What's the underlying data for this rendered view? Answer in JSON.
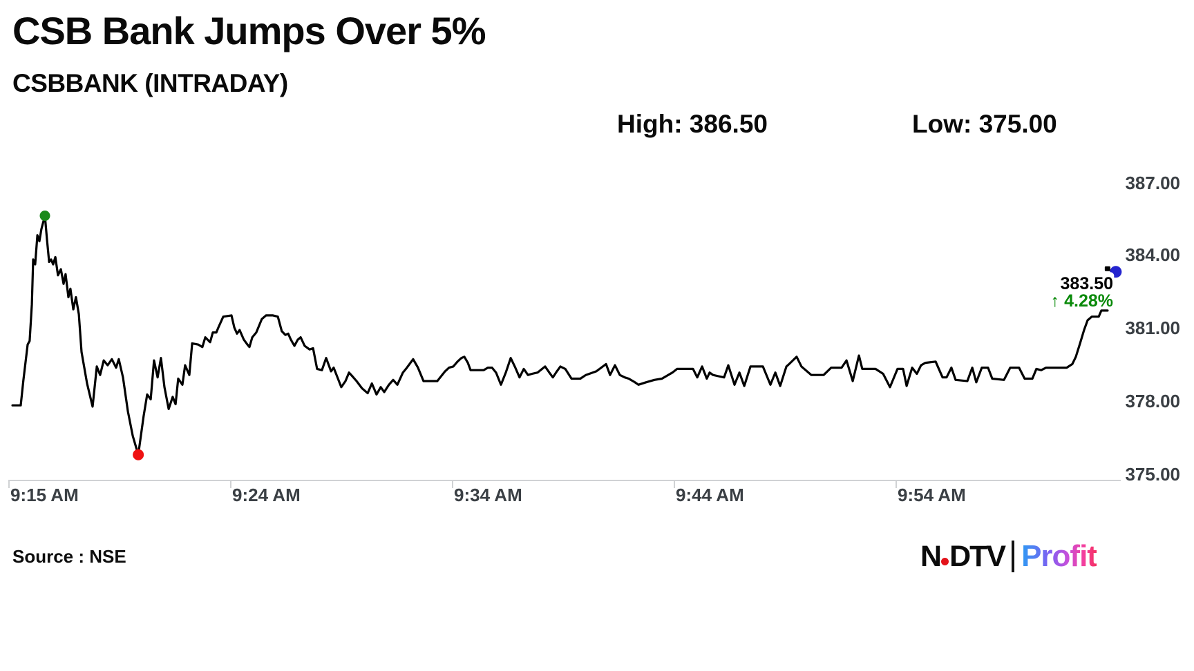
{
  "header": {
    "title": "CSB Bank Jumps Over 5%",
    "subtitle": "CSBBANK (INTRADAY)",
    "high_label": "High: 386.50",
    "low_label": "Low: 375.00"
  },
  "price_tag": {
    "last": "383.50",
    "change": "↑ 4.28%",
    "change_color": "#0a8a0a"
  },
  "footer": {
    "source": "Source : NSE",
    "logo": {
      "ndtv_left": "N",
      "ndtv_right": "DTV",
      "profit": "Profit"
    }
  },
  "chart_data": {
    "type": "line",
    "title": "CSB Bank Jumps Over 5%",
    "symbol": "CSBBANK (INTRADAY)",
    "high": 386.5,
    "low": 375.0,
    "last": 383.5,
    "change_pct": 4.28,
    "ylim": [
      375,
      387
    ],
    "grid": false,
    "legend": false,
    "line_color": "#000000",
    "axis_color": "#d0d2d4",
    "y_axis": {
      "labels": [
        "387.00",
        "384.00",
        "381.00",
        "378.00",
        "375.00"
      ],
      "values": [
        387,
        384,
        381,
        378,
        375
      ]
    },
    "x_axis": {
      "labels": [
        "9:15 AM",
        "9:24 AM",
        "9:34 AM",
        "9:44 AM",
        "9:54 AM"
      ],
      "minutes": [
        0,
        10,
        20,
        30,
        40
      ]
    },
    "markers": {
      "high": {
        "minute": 1.62,
        "value": 385.65,
        "color": "#1a8a1a"
      },
      "low": {
        "minute": 5.83,
        "value": 375.82,
        "color": "#ef1212"
      },
      "last": {
        "minute": 49.84,
        "value": 383.4,
        "color": "#2424cf"
      }
    },
    "series": [
      {
        "name": "CSBBANK",
        "points": [
          [
            0.16,
            377.85
          ],
          [
            0.53,
            377.85
          ],
          [
            0.65,
            378.9
          ],
          [
            0.84,
            380.35
          ],
          [
            0.93,
            380.5
          ],
          [
            1.03,
            382.0
          ],
          [
            1.09,
            383.85
          ],
          [
            1.18,
            383.65
          ],
          [
            1.28,
            384.85
          ],
          [
            1.37,
            384.6
          ],
          [
            1.46,
            385.1
          ],
          [
            1.62,
            385.65
          ],
          [
            1.71,
            384.7
          ],
          [
            1.81,
            383.75
          ],
          [
            1.9,
            383.85
          ],
          [
            1.99,
            383.65
          ],
          [
            2.09,
            383.95
          ],
          [
            2.21,
            383.2
          ],
          [
            2.34,
            383.45
          ],
          [
            2.46,
            382.85
          ],
          [
            2.55,
            383.25
          ],
          [
            2.68,
            382.3
          ],
          [
            2.77,
            382.65
          ],
          [
            2.9,
            381.8
          ],
          [
            3.02,
            382.3
          ],
          [
            3.15,
            381.6
          ],
          [
            3.27,
            380.05
          ],
          [
            3.52,
            378.75
          ],
          [
            3.77,
            377.8
          ],
          [
            3.96,
            379.45
          ],
          [
            4.11,
            379.1
          ],
          [
            4.27,
            379.7
          ],
          [
            4.45,
            379.5
          ],
          [
            4.64,
            379.75
          ],
          [
            4.83,
            379.4
          ],
          [
            4.95,
            379.75
          ],
          [
            5.14,
            379.0
          ],
          [
            5.36,
            377.6
          ],
          [
            5.58,
            376.6
          ],
          [
            5.83,
            375.82
          ],
          [
            6.07,
            377.4
          ],
          [
            6.23,
            378.3
          ],
          [
            6.39,
            378.1
          ],
          [
            6.54,
            379.7
          ],
          [
            6.7,
            379.0
          ],
          [
            6.85,
            379.8
          ],
          [
            7.01,
            378.6
          ],
          [
            7.2,
            377.7
          ],
          [
            7.38,
            378.2
          ],
          [
            7.51,
            377.9
          ],
          [
            7.63,
            378.95
          ],
          [
            7.82,
            378.7
          ],
          [
            7.94,
            379.5
          ],
          [
            8.13,
            379.1
          ],
          [
            8.26,
            380.4
          ],
          [
            8.54,
            380.35
          ],
          [
            8.72,
            380.25
          ],
          [
            8.85,
            380.65
          ],
          [
            9.07,
            380.45
          ],
          [
            9.19,
            380.85
          ],
          [
            9.35,
            380.85
          ],
          [
            9.44,
            381.05
          ],
          [
            9.66,
            381.5
          ],
          [
            10.03,
            381.55
          ],
          [
            10.16,
            381.05
          ],
          [
            10.28,
            380.8
          ],
          [
            10.4,
            380.95
          ],
          [
            10.59,
            380.55
          ],
          [
            10.75,
            380.35
          ],
          [
            10.84,
            380.25
          ],
          [
            10.97,
            380.65
          ],
          [
            11.15,
            380.85
          ],
          [
            11.4,
            381.4
          ],
          [
            11.59,
            381.55
          ],
          [
            11.9,
            381.55
          ],
          [
            12.12,
            381.5
          ],
          [
            12.3,
            380.9
          ],
          [
            12.46,
            380.75
          ],
          [
            12.59,
            380.8
          ],
          [
            12.71,
            380.55
          ],
          [
            12.87,
            380.3
          ],
          [
            13.02,
            380.55
          ],
          [
            13.15,
            380.65
          ],
          [
            13.33,
            380.3
          ],
          [
            13.55,
            380.15
          ],
          [
            13.71,
            380.2
          ],
          [
            13.89,
            379.35
          ],
          [
            14.11,
            379.3
          ],
          [
            14.3,
            379.8
          ],
          [
            14.52,
            379.25
          ],
          [
            14.64,
            379.4
          ],
          [
            14.98,
            378.6
          ],
          [
            15.17,
            378.85
          ],
          [
            15.33,
            379.2
          ],
          [
            15.48,
            379.05
          ],
          [
            15.67,
            378.85
          ],
          [
            15.92,
            378.55
          ],
          [
            16.17,
            378.35
          ],
          [
            16.36,
            378.75
          ],
          [
            16.57,
            378.3
          ],
          [
            16.76,
            378.6
          ],
          [
            16.92,
            378.4
          ],
          [
            17.13,
            378.7
          ],
          [
            17.32,
            378.9
          ],
          [
            17.51,
            378.7
          ],
          [
            17.76,
            379.2
          ],
          [
            17.94,
            379.4
          ],
          [
            18.22,
            379.75
          ],
          [
            18.44,
            379.4
          ],
          [
            18.69,
            378.85
          ],
          [
            19.31,
            378.85
          ],
          [
            19.66,
            379.25
          ],
          [
            19.84,
            379.4
          ],
          [
            20.03,
            379.45
          ],
          [
            20.22,
            379.65
          ],
          [
            20.4,
            379.8
          ],
          [
            20.53,
            379.85
          ],
          [
            20.69,
            379.6
          ],
          [
            20.81,
            379.3
          ],
          [
            21.4,
            379.3
          ],
          [
            21.59,
            379.4
          ],
          [
            21.78,
            379.4
          ],
          [
            21.96,
            379.2
          ],
          [
            22.18,
            378.7
          ],
          [
            22.4,
            379.2
          ],
          [
            22.62,
            379.8
          ],
          [
            22.83,
            379.4
          ],
          [
            23.02,
            379.0
          ],
          [
            23.21,
            379.35
          ],
          [
            23.4,
            379.1
          ],
          [
            23.58,
            379.15
          ],
          [
            23.83,
            379.2
          ],
          [
            24.17,
            379.45
          ],
          [
            24.36,
            379.2
          ],
          [
            24.52,
            379.0
          ],
          [
            24.7,
            379.25
          ],
          [
            24.86,
            379.45
          ],
          [
            25.08,
            379.35
          ],
          [
            25.36,
            378.95
          ],
          [
            25.76,
            378.95
          ],
          [
            26.01,
            379.1
          ],
          [
            26.48,
            379.25
          ],
          [
            26.7,
            379.4
          ],
          [
            26.92,
            379.55
          ],
          [
            27.1,
            379.1
          ],
          [
            27.32,
            379.5
          ],
          [
            27.54,
            379.1
          ],
          [
            27.76,
            379.0
          ],
          [
            27.94,
            378.95
          ],
          [
            28.22,
            378.8
          ],
          [
            28.38,
            378.7
          ],
          [
            28.72,
            378.8
          ],
          [
            29.1,
            378.9
          ],
          [
            29.44,
            378.95
          ],
          [
            29.72,
            379.1
          ],
          [
            29.91,
            379.2
          ],
          [
            30.12,
            379.35
          ],
          [
            30.47,
            379.35
          ],
          [
            30.84,
            379.35
          ],
          [
            31.03,
            379.0
          ],
          [
            31.25,
            379.45
          ],
          [
            31.46,
            378.95
          ],
          [
            31.59,
            379.2
          ],
          [
            31.74,
            379.1
          ],
          [
            31.99,
            379.05
          ],
          [
            32.24,
            379.0
          ],
          [
            32.43,
            379.5
          ],
          [
            32.71,
            378.7
          ],
          [
            32.93,
            379.2
          ],
          [
            33.15,
            378.65
          ],
          [
            33.43,
            379.45
          ],
          [
            33.99,
            379.45
          ],
          [
            34.33,
            378.7
          ],
          [
            34.55,
            379.2
          ],
          [
            34.77,
            378.65
          ],
          [
            35.05,
            379.45
          ],
          [
            35.17,
            379.55
          ],
          [
            35.51,
            379.85
          ],
          [
            35.73,
            379.45
          ],
          [
            36.17,
            379.1
          ],
          [
            36.73,
            379.1
          ],
          [
            37.07,
            379.4
          ],
          [
            37.54,
            379.4
          ],
          [
            37.76,
            379.7
          ],
          [
            38.04,
            378.85
          ],
          [
            38.32,
            379.9
          ],
          [
            38.47,
            379.35
          ],
          [
            39.07,
            379.35
          ],
          [
            39.41,
            379.15
          ],
          [
            39.72,
            378.6
          ],
          [
            40.06,
            379.35
          ],
          [
            40.31,
            379.35
          ],
          [
            40.47,
            378.65
          ],
          [
            40.72,
            379.4
          ],
          [
            40.93,
            379.15
          ],
          [
            41.12,
            379.5
          ],
          [
            41.31,
            379.6
          ],
          [
            41.78,
            379.65
          ],
          [
            42.09,
            379.0
          ],
          [
            42.27,
            379.0
          ],
          [
            42.49,
            379.4
          ],
          [
            42.68,
            378.9
          ],
          [
            43.21,
            378.85
          ],
          [
            43.43,
            379.4
          ],
          [
            43.61,
            378.8
          ],
          [
            43.86,
            379.4
          ],
          [
            44.14,
            379.4
          ],
          [
            44.33,
            378.95
          ],
          [
            44.86,
            378.9
          ],
          [
            45.14,
            379.4
          ],
          [
            45.54,
            379.4
          ],
          [
            45.79,
            378.95
          ],
          [
            46.14,
            378.95
          ],
          [
            46.32,
            379.35
          ],
          [
            46.54,
            379.3
          ],
          [
            46.76,
            379.4
          ],
          [
            47.69,
            379.4
          ],
          [
            47.94,
            379.55
          ],
          [
            48.1,
            379.85
          ],
          [
            48.29,
            380.4
          ],
          [
            48.47,
            380.95
          ],
          [
            48.63,
            381.35
          ],
          [
            48.82,
            381.5
          ],
          [
            49.0,
            381.5
          ],
          [
            49.13,
            381.5
          ],
          [
            49.25,
            381.75
          ],
          [
            49.41,
            381.75
          ],
          [
            49.53,
            381.75
          ]
        ]
      }
    ]
  }
}
